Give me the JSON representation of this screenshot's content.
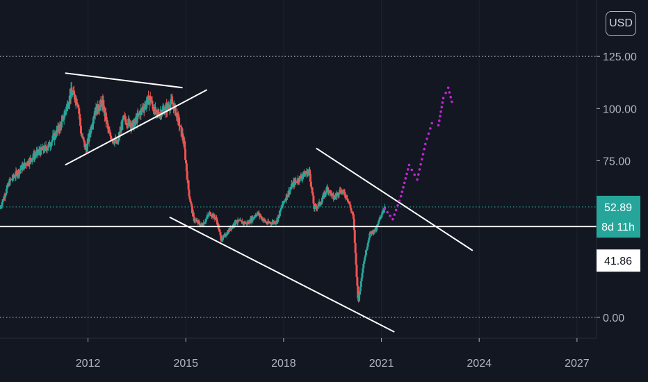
{
  "currency_button": "USD",
  "chart_data": {
    "type": "candlestick",
    "y_axis": {
      "range": [
        -10,
        152
      ],
      "ticks": [
        {
          "value": 125,
          "label": "125.00"
        },
        {
          "value": 100,
          "label": "100.00"
        },
        {
          "value": 75,
          "label": "75.00"
        },
        {
          "value": 0,
          "label": "0.00"
        }
      ]
    },
    "x_axis": {
      "range": [
        2009.3,
        2027.6
      ],
      "ticks": [
        {
          "value": 2012,
          "label": "2012"
        },
        {
          "value": 2015,
          "label": "2015"
        },
        {
          "value": 2018,
          "label": "2018"
        },
        {
          "value": 2021,
          "label": "2021"
        },
        {
          "value": 2024,
          "label": "2024"
        },
        {
          "value": 2027,
          "label": "2027"
        }
      ]
    },
    "price_badges": [
      {
        "label": "52.89",
        "value": 52.9,
        "bg": "#26a69a",
        "fg": "#ffffff"
      },
      {
        "label": "8d 11h",
        "value": 43.5,
        "bg": "#26a69a",
        "fg": "#ffffff"
      },
      {
        "label": "41.86",
        "value": 27.2,
        "bg": "#ffffff",
        "fg": "#131722"
      }
    ],
    "keypoints": [
      [
        2009.3,
        52
      ],
      [
        2009.6,
        65
      ],
      [
        2010.0,
        72
      ],
      [
        2010.4,
        78
      ],
      [
        2010.8,
        82
      ],
      [
        2011.2,
        93
      ],
      [
        2011.5,
        108
      ],
      [
        2011.7,
        103
      ],
      [
        2011.8,
        88
      ],
      [
        2011.95,
        80
      ],
      [
        2012.2,
        98
      ],
      [
        2012.45,
        103
      ],
      [
        2012.65,
        88
      ],
      [
        2012.9,
        83
      ],
      [
        2013.1,
        95
      ],
      [
        2013.4,
        92
      ],
      [
        2013.6,
        98
      ],
      [
        2013.9,
        105
      ],
      [
        2014.1,
        97
      ],
      [
        2014.4,
        100
      ],
      [
        2014.6,
        103
      ],
      [
        2014.75,
        96
      ],
      [
        2014.95,
        84
      ],
      [
        2015.1,
        60
      ],
      [
        2015.25,
        47
      ],
      [
        2015.5,
        44
      ],
      [
        2015.75,
        50
      ],
      [
        2015.95,
        47
      ],
      [
        2016.1,
        37
      ],
      [
        2016.3,
        41
      ],
      [
        2016.55,
        46
      ],
      [
        2016.9,
        45
      ],
      [
        2017.2,
        50
      ],
      [
        2017.5,
        45
      ],
      [
        2017.8,
        46
      ],
      [
        2018.0,
        55
      ],
      [
        2018.3,
        64
      ],
      [
        2018.6,
        68
      ],
      [
        2018.8,
        70
      ],
      [
        2018.95,
        52
      ],
      [
        2019.15,
        55
      ],
      [
        2019.35,
        62
      ],
      [
        2019.55,
        57
      ],
      [
        2019.75,
        61
      ],
      [
        2019.95,
        58
      ],
      [
        2020.15,
        48
      ],
      [
        2020.25,
        20
      ],
      [
        2020.3,
        7
      ],
      [
        2020.45,
        25
      ],
      [
        2020.65,
        40
      ],
      [
        2020.85,
        42
      ],
      [
        2021.0,
        49
      ],
      [
        2021.1,
        52.9
      ]
    ],
    "trend_lines": [
      {
        "from": [
          2011.3,
          117
        ],
        "to": [
          2014.9,
          110
        ],
        "color": "#ffffff"
      },
      {
        "from": [
          2011.3,
          73
        ],
        "to": [
          2015.65,
          109
        ],
        "color": "#ffffff"
      },
      {
        "from": [
          2014.5,
          48
        ],
        "to": [
          2021.4,
          -7
        ],
        "color": "#ffffff"
      },
      {
        "from": [
          2019.0,
          81
        ],
        "to": [
          2023.8,
          32
        ],
        "color": "#ffffff"
      }
    ],
    "support_line": {
      "value": 43.5,
      "color": "#ffffff"
    },
    "dotted_levels": [
      {
        "value": 125,
        "color": "#b2b5be"
      },
      {
        "value": 52.89,
        "color": "#26a69a"
      },
      {
        "value": 0,
        "color": "#b2b5be"
      }
    ],
    "projection_path": [
      [
        2021.1,
        52
      ],
      [
        2021.35,
        47
      ],
      [
        2021.6,
        58
      ],
      [
        2021.85,
        73
      ],
      [
        2022.1,
        66
      ],
      [
        2022.35,
        83
      ],
      [
        2022.55,
        93
      ],
      [
        2022.75,
        92
      ],
      [
        2022.9,
        105
      ],
      [
        2023.05,
        110
      ],
      [
        2023.2,
        101
      ]
    ],
    "colors": {
      "up": "#26a69a",
      "down": "#ef5350",
      "projection": "#c026d3",
      "axis_text": "#b2b5be"
    }
  }
}
